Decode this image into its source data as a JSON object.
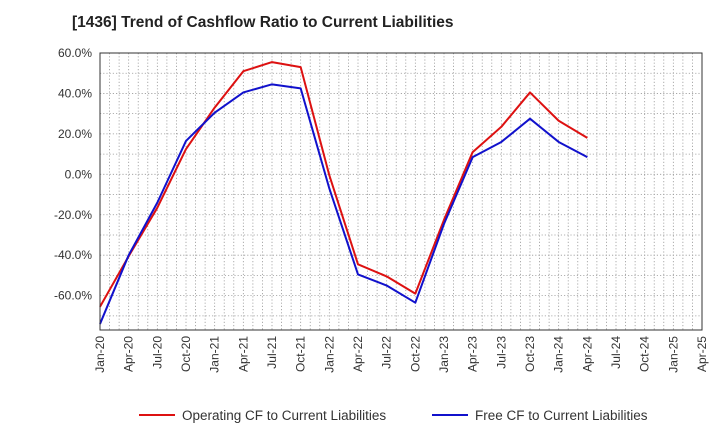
{
  "chart_data": {
    "type": "line",
    "title": "[1436]  Trend of Cashflow Ratio to Current Liabilities",
    "xlabel": "",
    "ylabel": "",
    "x": [
      "Jan-20",
      "Apr-20",
      "Jul-20",
      "Oct-20",
      "Jan-21",
      "Apr-21",
      "Jul-21",
      "Oct-21",
      "Jan-22",
      "Apr-22",
      "Jul-22",
      "Oct-22",
      "Jan-23",
      "Apr-23",
      "Jul-23",
      "Oct-23",
      "Jan-24",
      "Apr-24"
    ],
    "x_ticks": [
      "Jan-20",
      "Apr-20",
      "Jul-20",
      "Oct-20",
      "Jan-21",
      "Apr-21",
      "Jul-21",
      "Oct-21",
      "Jan-22",
      "Apr-22",
      "Jul-22",
      "Oct-22",
      "Jan-23",
      "Apr-23",
      "Jul-23",
      "Oct-23",
      "Jan-24",
      "Apr-24",
      "Jul-24",
      "Oct-24",
      "Jan-25",
      "Apr-25"
    ],
    "y_ticks": [
      60,
      40,
      20,
      0,
      -20,
      -40,
      -60
    ],
    "y_tick_labels": [
      "60.0%",
      "40.0%",
      "20.0%",
      "0.0%",
      "-20.0%",
      "-40.0%",
      "-60.0%"
    ],
    "ylim": [
      -77,
      60
    ],
    "grid": true,
    "legend_position": "bottom",
    "series": [
      {
        "name": "Operating CF to Current Liabilities",
        "color": "#dd1111",
        "values": [
          -65.5,
          -40.5,
          -16.5,
          12.5,
          33.0,
          51.0,
          55.5,
          53.0,
          -0.5,
          -44.5,
          -50.5,
          -59.0,
          -22.5,
          11.0,
          23.5,
          40.5,
          26.5,
          18.0
        ]
      },
      {
        "name": "Free CF to Current Liabilities",
        "color": "#1111cc",
        "values": [
          -74.0,
          -40.0,
          -14.0,
          16.5,
          30.5,
          40.5,
          44.5,
          42.5,
          -7.0,
          -49.5,
          -55.0,
          -63.5,
          -24.5,
          8.5,
          16.0,
          27.5,
          16.0,
          8.5
        ]
      }
    ]
  }
}
